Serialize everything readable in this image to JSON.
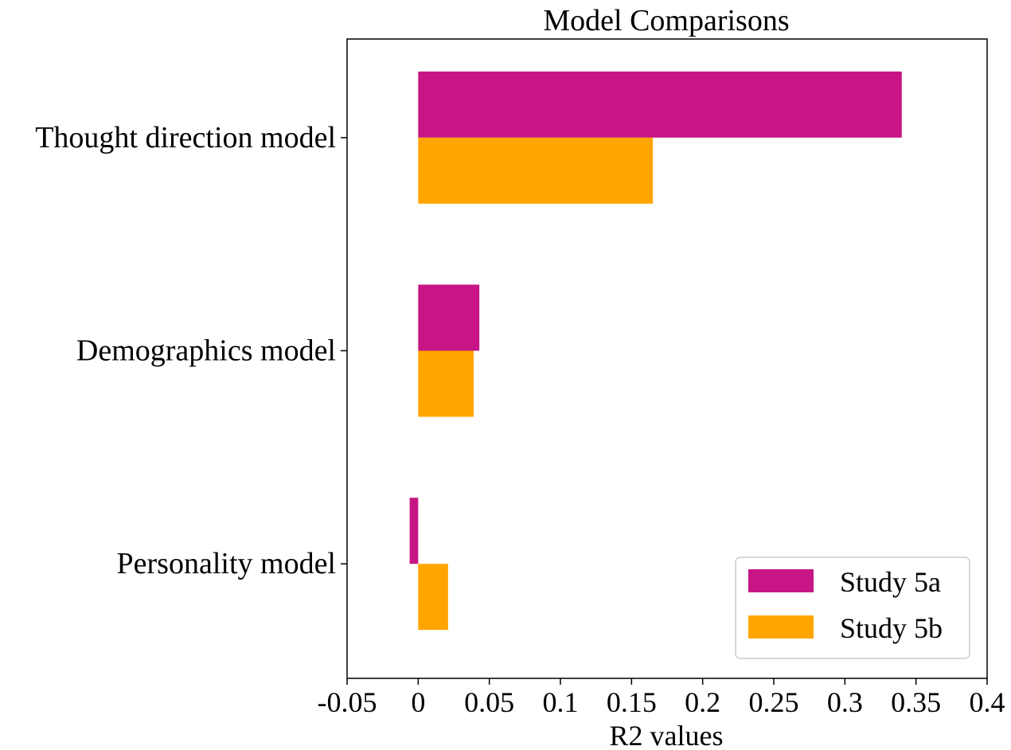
{
  "chart_data": {
    "type": "bar",
    "orientation": "horizontal",
    "title": "Model Comparisons",
    "xlabel": "R2 values",
    "ylabel": "",
    "categories": [
      "Thought direction model",
      "Demographics model",
      "Personality model"
    ],
    "series": [
      {
        "name": "Study 5a",
        "color": "#C71585",
        "values": [
          0.34,
          0.043,
          -0.006
        ]
      },
      {
        "name": "Study 5b",
        "color": "#FFA500",
        "values": [
          0.165,
          0.039,
          0.021
        ]
      }
    ],
    "xlim": [
      -0.05,
      0.4
    ],
    "xticks": [
      -0.05,
      0,
      0.05,
      0.1,
      0.15,
      0.2,
      0.25,
      0.3,
      0.35,
      0.4
    ],
    "xtick_labels": [
      "-0.05",
      "0",
      "0.05",
      "0.1",
      "0.15",
      "0.2",
      "0.25",
      "0.3",
      "0.35",
      "0.4"
    ],
    "grid": false,
    "legend_position": "bottom-right"
  }
}
